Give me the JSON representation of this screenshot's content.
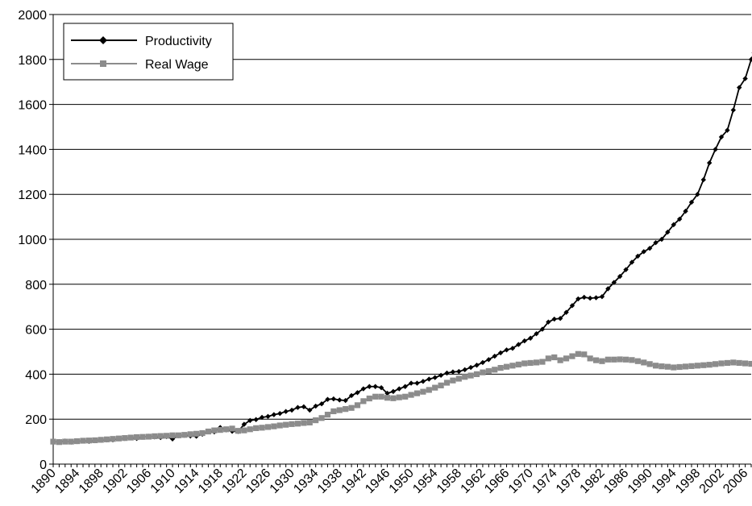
{
  "chart_data": {
    "type": "line",
    "title": "",
    "xlabel": "",
    "ylabel": "",
    "ylim": [
      0,
      2000
    ],
    "xlim": [
      1890,
      2007
    ],
    "y_ticks": [
      0,
      200,
      400,
      600,
      800,
      1000,
      1200,
      1400,
      1600,
      1800,
      2000
    ],
    "x_tick_labels": [
      "1890",
      "1894",
      "1898",
      "1902",
      "1906",
      "1910",
      "1914",
      "1918",
      "1922",
      "1926",
      "1930",
      "1934",
      "1938",
      "1942",
      "1946",
      "1950",
      "1954",
      "1958",
      "1962",
      "1966",
      "1970",
      "1974",
      "1978",
      "1982",
      "1986",
      "1990",
      "1994",
      "1998",
      "2002",
      "2006"
    ],
    "grid": "horizontal",
    "legend_position": "top-left",
    "series": [
      {
        "name": "Productivity",
        "color": "#000000",
        "marker": "diamond",
        "points": [
          [
            1890,
            100
          ],
          [
            1891,
            100
          ],
          [
            1892,
            103
          ],
          [
            1893,
            98
          ],
          [
            1894,
            100
          ],
          [
            1895,
            104
          ],
          [
            1896,
            101
          ],
          [
            1897,
            104
          ],
          [
            1898,
            106
          ],
          [
            1899,
            108
          ],
          [
            1900,
            108
          ],
          [
            1901,
            113
          ],
          [
            1902,
            114
          ],
          [
            1903,
            117
          ],
          [
            1904,
            114
          ],
          [
            1905,
            120
          ],
          [
            1906,
            124
          ],
          [
            1907,
            121
          ],
          [
            1908,
            118
          ],
          [
            1909,
            122
          ],
          [
            1910,
            112
          ],
          [
            1911,
            126
          ],
          [
            1912,
            128
          ],
          [
            1913,
            125
          ],
          [
            1914,
            124
          ],
          [
            1915,
            133
          ],
          [
            1916,
            145
          ],
          [
            1917,
            143
          ],
          [
            1918,
            163
          ],
          [
            1919,
            152
          ],
          [
            1920,
            146
          ],
          [
            1921,
            145
          ],
          [
            1922,
            177
          ],
          [
            1923,
            194
          ],
          [
            1924,
            198
          ],
          [
            1925,
            208
          ],
          [
            1926,
            212
          ],
          [
            1927,
            220
          ],
          [
            1928,
            225
          ],
          [
            1929,
            234
          ],
          [
            1930,
            240
          ],
          [
            1931,
            252
          ],
          [
            1932,
            255
          ],
          [
            1933,
            240
          ],
          [
            1934,
            258
          ],
          [
            1935,
            268
          ],
          [
            1936,
            288
          ],
          [
            1937,
            290
          ],
          [
            1938,
            285
          ],
          [
            1939,
            283
          ],
          [
            1940,
            305
          ],
          [
            1941,
            318
          ],
          [
            1942,
            335
          ],
          [
            1943,
            345
          ],
          [
            1944,
            345
          ],
          [
            1945,
            340
          ],
          [
            1946,
            315
          ],
          [
            1947,
            323
          ],
          [
            1948,
            335
          ],
          [
            1949,
            345
          ],
          [
            1950,
            360
          ],
          [
            1951,
            360
          ],
          [
            1952,
            368
          ],
          [
            1953,
            378
          ],
          [
            1954,
            385
          ],
          [
            1955,
            395
          ],
          [
            1956,
            405
          ],
          [
            1957,
            410
          ],
          [
            1958,
            412
          ],
          [
            1959,
            420
          ],
          [
            1960,
            430
          ],
          [
            1961,
            440
          ],
          [
            1962,
            452
          ],
          [
            1963,
            465
          ],
          [
            1964,
            480
          ],
          [
            1965,
            495
          ],
          [
            1966,
            508
          ],
          [
            1967,
            515
          ],
          [
            1968,
            532
          ],
          [
            1969,
            548
          ],
          [
            1970,
            560
          ],
          [
            1971,
            580
          ],
          [
            1972,
            600
          ],
          [
            1973,
            632
          ],
          [
            1974,
            645
          ],
          [
            1975,
            648
          ],
          [
            1976,
            675
          ],
          [
            1977,
            705
          ],
          [
            1978,
            735
          ],
          [
            1979,
            742
          ],
          [
            1980,
            738
          ],
          [
            1981,
            740
          ],
          [
            1982,
            745
          ],
          [
            1983,
            780
          ],
          [
            1984,
            808
          ],
          [
            1985,
            835
          ],
          [
            1986,
            865
          ],
          [
            1987,
            898
          ],
          [
            1988,
            925
          ],
          [
            1989,
            945
          ],
          [
            1990,
            960
          ],
          [
            1991,
            985
          ],
          [
            1992,
            1000
          ],
          [
            1993,
            1032
          ],
          [
            1994,
            1065
          ],
          [
            1995,
            1090
          ],
          [
            1996,
            1125
          ],
          [
            1997,
            1165
          ],
          [
            1998,
            1200
          ],
          [
            1999,
            1265
          ],
          [
            2000,
            1340
          ],
          [
            2001,
            1400
          ],
          [
            2002,
            1455
          ],
          [
            2003,
            1485
          ],
          [
            2004,
            1575
          ],
          [
            2005,
            1675
          ],
          [
            2006,
            1715
          ],
          [
            2007,
            1800
          ],
          [
            2007.5,
            1830
          ]
        ]
      },
      {
        "name": "Real Wage",
        "color": "#8c8c8c",
        "marker": "square",
        "points": [
          [
            1890,
            100
          ],
          [
            1891,
            98
          ],
          [
            1892,
            100
          ],
          [
            1893,
            100
          ],
          [
            1894,
            102
          ],
          [
            1895,
            104
          ],
          [
            1896,
            105
          ],
          [
            1897,
            106
          ],
          [
            1898,
            108
          ],
          [
            1899,
            110
          ],
          [
            1900,
            112
          ],
          [
            1901,
            114
          ],
          [
            1902,
            116
          ],
          [
            1903,
            118
          ],
          [
            1904,
            120
          ],
          [
            1905,
            121
          ],
          [
            1906,
            122
          ],
          [
            1907,
            124
          ],
          [
            1908,
            125
          ],
          [
            1909,
            126
          ],
          [
            1910,
            128
          ],
          [
            1911,
            128
          ],
          [
            1912,
            130
          ],
          [
            1913,
            133
          ],
          [
            1914,
            135
          ],
          [
            1915,
            138
          ],
          [
            1916,
            145
          ],
          [
            1917,
            150
          ],
          [
            1918,
            152
          ],
          [
            1919,
            155
          ],
          [
            1920,
            158
          ],
          [
            1921,
            148
          ],
          [
            1922,
            150
          ],
          [
            1923,
            155
          ],
          [
            1924,
            160
          ],
          [
            1925,
            162
          ],
          [
            1926,
            165
          ],
          [
            1927,
            168
          ],
          [
            1928,
            172
          ],
          [
            1929,
            175
          ],
          [
            1930,
            178
          ],
          [
            1931,
            180
          ],
          [
            1932,
            183
          ],
          [
            1933,
            185
          ],
          [
            1934,
            195
          ],
          [
            1935,
            205
          ],
          [
            1936,
            220
          ],
          [
            1937,
            235
          ],
          [
            1938,
            240
          ],
          [
            1939,
            245
          ],
          [
            1940,
            250
          ],
          [
            1941,
            262
          ],
          [
            1942,
            280
          ],
          [
            1943,
            292
          ],
          [
            1944,
            300
          ],
          [
            1945,
            300
          ],
          [
            1946,
            295
          ],
          [
            1947,
            293
          ],
          [
            1948,
            297
          ],
          [
            1949,
            300
          ],
          [
            1950,
            308
          ],
          [
            1951,
            315
          ],
          [
            1952,
            322
          ],
          [
            1953,
            330
          ],
          [
            1954,
            340
          ],
          [
            1955,
            350
          ],
          [
            1956,
            362
          ],
          [
            1957,
            372
          ],
          [
            1958,
            380
          ],
          [
            1959,
            388
          ],
          [
            1960,
            394
          ],
          [
            1961,
            400
          ],
          [
            1962,
            408
          ],
          [
            1963,
            414
          ],
          [
            1964,
            420
          ],
          [
            1965,
            428
          ],
          [
            1966,
            433
          ],
          [
            1967,
            438
          ],
          [
            1968,
            443
          ],
          [
            1969,
            448
          ],
          [
            1970,
            450
          ],
          [
            1971,
            452
          ],
          [
            1972,
            455
          ],
          [
            1973,
            470
          ],
          [
            1974,
            475
          ],
          [
            1975,
            462
          ],
          [
            1976,
            470
          ],
          [
            1977,
            480
          ],
          [
            1978,
            490
          ],
          [
            1979,
            488
          ],
          [
            1980,
            470
          ],
          [
            1981,
            462
          ],
          [
            1982,
            458
          ],
          [
            1983,
            465
          ],
          [
            1984,
            465
          ],
          [
            1985,
            466
          ],
          [
            1986,
            465
          ],
          [
            1987,
            463
          ],
          [
            1988,
            458
          ],
          [
            1989,
            452
          ],
          [
            1990,
            445
          ],
          [
            1991,
            438
          ],
          [
            1992,
            435
          ],
          [
            1993,
            433
          ],
          [
            1994,
            430
          ],
          [
            1995,
            432
          ],
          [
            1996,
            434
          ],
          [
            1997,
            436
          ],
          [
            1998,
            438
          ],
          [
            1999,
            440
          ],
          [
            2000,
            442
          ],
          [
            2001,
            445
          ],
          [
            2002,
            448
          ],
          [
            2003,
            450
          ],
          [
            2004,
            452
          ],
          [
            2005,
            450
          ],
          [
            2006,
            448
          ],
          [
            2007,
            446
          ]
        ]
      }
    ]
  }
}
